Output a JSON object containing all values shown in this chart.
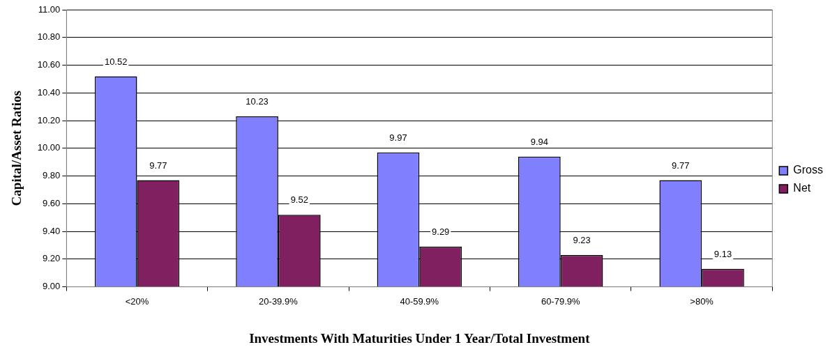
{
  "chart_data": {
    "type": "bar",
    "xlabel": "Investments With Maturities Under 1 Year/Total Investment",
    "ylabel": "Capital/Asset Ratios",
    "categories": [
      "<20%",
      "20-39.9%",
      "40-59.9%",
      "60-79.9%",
      ">80%"
    ],
    "series": [
      {
        "name": "Gross",
        "color": "#8080ff",
        "values": [
          10.52,
          10.23,
          9.97,
          9.94,
          9.77
        ]
      },
      {
        "name": "Net",
        "color": "#802060",
        "values": [
          9.77,
          9.52,
          9.29,
          9.23,
          9.13
        ]
      }
    ],
    "ylim": [
      9,
      11
    ],
    "yticks": [
      {
        "value": 9,
        "label": "9.00"
      },
      {
        "value": 9.2,
        "label": "9.20"
      },
      {
        "value": 9.4,
        "label": "9.40"
      },
      {
        "value": 9.6,
        "label": "9.60"
      },
      {
        "value": 9.8,
        "label": "9.80"
      },
      {
        "value": 10,
        "label": "10.00"
      },
      {
        "value": 10.2,
        "label": "10.20"
      },
      {
        "value": 10.4,
        "label": "10.40"
      },
      {
        "value": 10.6,
        "label": "10.60"
      },
      {
        "value": 10.8,
        "label": "10.80"
      },
      {
        "value": 11,
        "label": "11.00"
      }
    ],
    "grid": "y",
    "legend": "right",
    "data_labels": true
  }
}
